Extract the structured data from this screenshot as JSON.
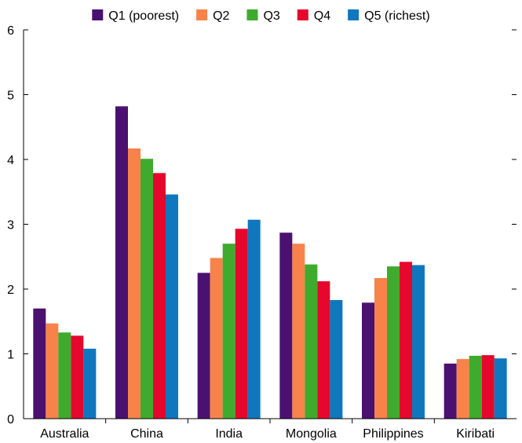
{
  "chart_data": {
    "type": "bar",
    "title": "",
    "xlabel": "",
    "ylabel": "",
    "ylim": [
      0,
      6
    ],
    "yticks": [
      0,
      1,
      2,
      3,
      4,
      5,
      6
    ],
    "grid": false,
    "legend_position": "top",
    "categories": [
      "Australia",
      "China",
      "India",
      "Mongolia",
      "Philippines",
      "Kiribati"
    ],
    "series": [
      {
        "name": "Q1 (poorest)",
        "color": "#4b1170",
        "values": [
          1.7,
          4.82,
          2.25,
          2.87,
          1.79,
          0.85
        ]
      },
      {
        "name": "Q2",
        "color": "#f7834b",
        "values": [
          1.47,
          4.17,
          2.48,
          2.7,
          2.17,
          0.92
        ]
      },
      {
        "name": "Q3",
        "color": "#3fab2e",
        "values": [
          1.33,
          4.01,
          2.7,
          2.38,
          2.35,
          0.97
        ]
      },
      {
        "name": "Q4",
        "color": "#e5072c",
        "values": [
          1.28,
          3.79,
          2.93,
          2.12,
          2.42,
          0.98
        ]
      },
      {
        "name": "Q5 (richest)",
        "color": "#0f77bd",
        "values": [
          1.08,
          3.46,
          3.07,
          1.83,
          2.37,
          0.93
        ]
      }
    ]
  }
}
